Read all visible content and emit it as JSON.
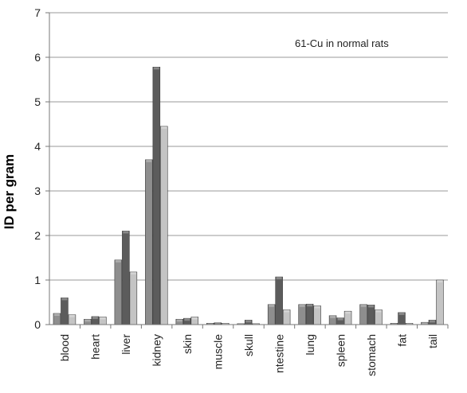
{
  "chart_data": {
    "type": "bar",
    "title": "",
    "annotation": "61-Cu in normal rats",
    "xlabel": "",
    "ylabel": "ID per gram",
    "ylim": [
      0,
      7
    ],
    "yticks": [
      "0",
      "1",
      "2",
      "3",
      "4",
      "5",
      "6",
      "7"
    ],
    "grid": true,
    "categories": [
      "blood",
      "heart",
      "liver",
      "kidney",
      "skin",
      "muscle",
      "skull",
      "ntestine",
      "lung",
      "spleen",
      "stomach",
      "fat",
      "tail"
    ],
    "series": [
      {
        "color": "#8e8e8e",
        "values": [
          0.25,
          0.12,
          1.45,
          3.7,
          0.12,
          0.03,
          0.02,
          0.45,
          0.45,
          0.2,
          0.45,
          0.03,
          0.05
        ]
      },
      {
        "color": "#5c5c5c",
        "values": [
          0.6,
          0.18,
          2.1,
          5.78,
          0.14,
          0.04,
          0.1,
          1.07,
          0.46,
          0.15,
          0.44,
          0.27,
          0.1
        ]
      },
      {
        "color": "#c4c4c4",
        "values": [
          0.22,
          0.17,
          1.18,
          4.45,
          0.17,
          0.03,
          0.02,
          0.33,
          0.42,
          0.3,
          0.33,
          0.03,
          1.0
        ]
      }
    ]
  }
}
